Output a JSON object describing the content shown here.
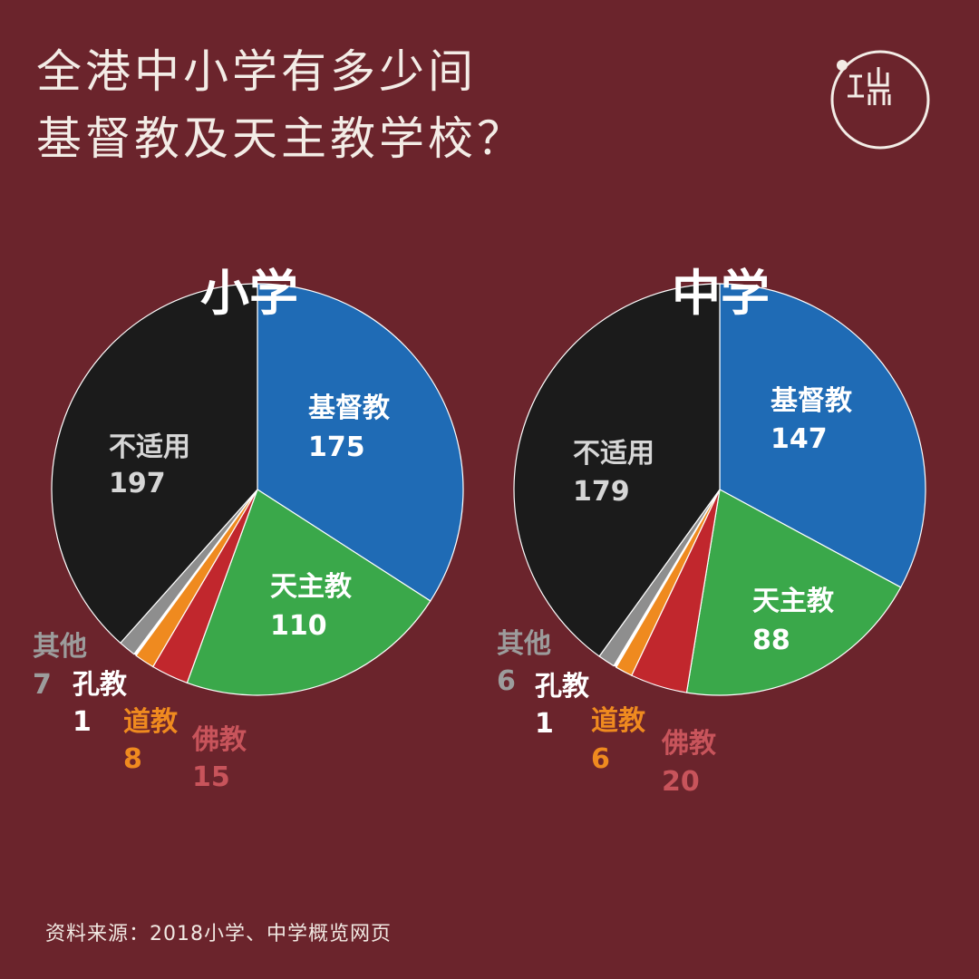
{
  "title": {
    "line1": "全港中小学有多少间",
    "line2": "基督教及天主教学校？"
  },
  "logo": {
    "icon": "initium-logo-icon"
  },
  "source": "资料来源：2018小学、中学概览网页",
  "colors": {
    "background": "#6b242c",
    "基督教": "#1f6bb5",
    "天主教": "#3aa84a",
    "佛教": "#c1272d",
    "道教": "#ef8a1f",
    "孔教": "#ffffff",
    "其他": "#8e8e8e",
    "不适用": "#1b1b1b"
  },
  "chart_data": [
    {
      "type": "pie",
      "title": "小学",
      "categories": [
        "基督教",
        "天主教",
        "佛教",
        "道教",
        "孔教",
        "其他",
        "不适用"
      ],
      "values": [
        175,
        110,
        15,
        8,
        1,
        7,
        197
      ]
    },
    {
      "type": "pie",
      "title": "中学",
      "categories": [
        "基督教",
        "天主教",
        "佛教",
        "道教",
        "孔教",
        "其他",
        "不适用"
      ],
      "values": [
        147,
        88,
        20,
        6,
        1,
        6,
        179
      ]
    }
  ]
}
